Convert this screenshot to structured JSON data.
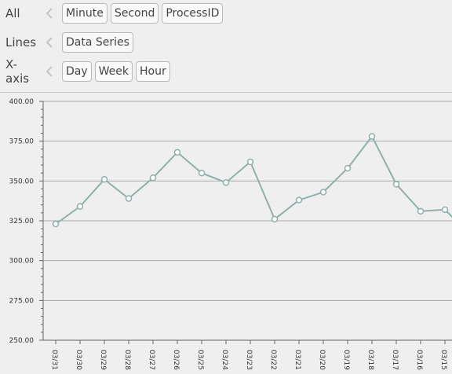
{
  "filters": [
    {
      "label": "All",
      "chips": [
        "Minute",
        "Second",
        "ProcessID"
      ]
    },
    {
      "label": "Lines",
      "chips": [
        "Data Series"
      ]
    },
    {
      "label": "X-axis",
      "chips": [
        "Day",
        "Week",
        "Hour"
      ]
    }
  ],
  "colors": {
    "line": "#8fb0ab",
    "grid": "#a8a8a8",
    "axis": "#666666",
    "point_fill": "#ffffff"
  },
  "chart_data": {
    "type": "line",
    "ylim": [
      250,
      400
    ],
    "yticks": [
      "400.00",
      "375.00",
      "350.00",
      "325.00",
      "300.00",
      "275.00",
      "250.00"
    ],
    "categories": [
      "03/31",
      "03/30",
      "03/29",
      "03/28",
      "03/27",
      "03/26",
      "03/25",
      "03/24",
      "03/23",
      "03/22",
      "03/21",
      "03/20",
      "03/19",
      "03/18",
      "03/17",
      "03/16",
      "03/15"
    ],
    "series": [
      {
        "values": [
          323,
          334,
          351,
          339,
          352,
          368,
          355,
          349,
          362,
          326,
          338,
          343,
          358,
          378,
          348,
          331,
          332
        ]
      }
    ],
    "grid": true
  }
}
